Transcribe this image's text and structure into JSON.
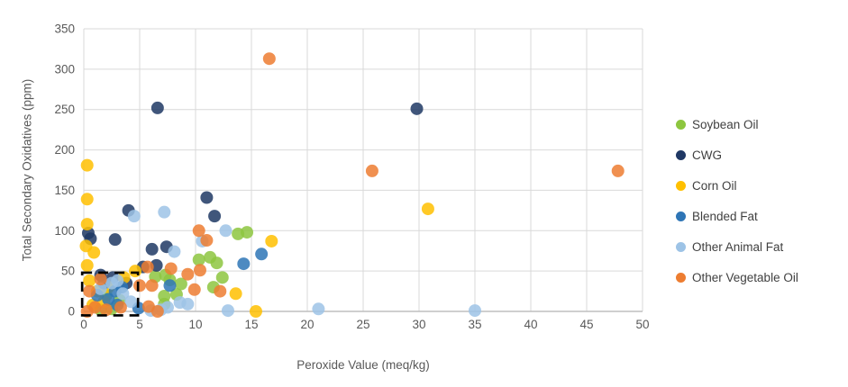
{
  "chart_data": {
    "type": "scatter",
    "title": "",
    "xlabel": "Peroxide Value (meq/kg)",
    "ylabel": "Total Secondary Oxidatives (ppm)",
    "xlim": [
      0,
      50
    ],
    "ylim": [
      0,
      350
    ],
    "xticks": [
      0,
      5,
      10,
      15,
      20,
      25,
      30,
      35,
      40,
      45,
      50
    ],
    "yticks": [
      0,
      50,
      100,
      150,
      200,
      250,
      300,
      350
    ],
    "grid": true,
    "legend_position": "right",
    "marker_radius": 7,
    "marker_opacity": 0.85,
    "series": [
      {
        "name": "Soybean Oil",
        "color": "#8DC63F",
        "points": [
          [
            1.5,
            2
          ],
          [
            2.5,
            3
          ],
          [
            2.0,
            20
          ],
          [
            3.2,
            14
          ],
          [
            7.2,
            9
          ],
          [
            7.2,
            19
          ],
          [
            8.3,
            21
          ],
          [
            8.7,
            34
          ],
          [
            6.4,
            43
          ],
          [
            7.3,
            45
          ],
          [
            7.7,
            39
          ],
          [
            11.6,
            30
          ],
          [
            12.4,
            42
          ],
          [
            10.3,
            64
          ],
          [
            11.3,
            67
          ],
          [
            11.9,
            60
          ],
          [
            13.8,
            96
          ],
          [
            14.6,
            98
          ]
        ]
      },
      {
        "name": "CWG",
        "color": "#1F3864",
        "points": [
          [
            6.6,
            252
          ],
          [
            29.8,
            251
          ],
          [
            4.0,
            125
          ],
          [
            11.0,
            141
          ],
          [
            11.7,
            118
          ],
          [
            0.4,
            97
          ],
          [
            0.6,
            90
          ],
          [
            2.8,
            89
          ],
          [
            7.4,
            80
          ],
          [
            6.1,
            77
          ],
          [
            6.5,
            57
          ],
          [
            5.3,
            55
          ],
          [
            1.5,
            45
          ],
          [
            2.6,
            42
          ],
          [
            3.8,
            35
          ]
        ]
      },
      {
        "name": "Corn Oil",
        "color": "#FFC000",
        "points": [
          [
            0.3,
            181
          ],
          [
            0.3,
            139
          ],
          [
            0.3,
            108
          ],
          [
            0.2,
            81
          ],
          [
            0.9,
            73
          ],
          [
            0.3,
            57
          ],
          [
            4.6,
            50
          ],
          [
            3.6,
            42
          ],
          [
            0.5,
            38
          ],
          [
            2.2,
            30
          ],
          [
            1.2,
            25
          ],
          [
            13.6,
            22
          ],
          [
            1.8,
            12
          ],
          [
            0.8,
            8
          ],
          [
            15.4,
            0
          ],
          [
            16.8,
            87
          ],
          [
            30.8,
            127
          ]
        ]
      },
      {
        "name": "Blended Fat",
        "color": "#2E75B6",
        "points": [
          [
            15.9,
            71
          ],
          [
            14.3,
            59
          ],
          [
            7.7,
            32
          ],
          [
            1.8,
            35
          ],
          [
            3.4,
            30
          ],
          [
            2.8,
            25
          ],
          [
            1.2,
            20
          ],
          [
            2.2,
            15
          ],
          [
            3.0,
            8
          ],
          [
            4.9,
            4
          ]
        ]
      },
      {
        "name": "Other Animal Fat",
        "color": "#9DC3E6",
        "points": [
          [
            4.5,
            118
          ],
          [
            7.2,
            123
          ],
          [
            12.7,
            100
          ],
          [
            10.6,
            87
          ],
          [
            8.1,
            74
          ],
          [
            3.0,
            38
          ],
          [
            2.5,
            35
          ],
          [
            1.5,
            28
          ],
          [
            3.5,
            22
          ],
          [
            4.2,
            12
          ],
          [
            8.6,
            11
          ],
          [
            9.3,
            9
          ],
          [
            7.5,
            5
          ],
          [
            6.0,
            1
          ],
          [
            6.9,
            2
          ],
          [
            12.9,
            1
          ],
          [
            21.0,
            3
          ],
          [
            35.0,
            1
          ]
        ]
      },
      {
        "name": "Other Vegetable Oil",
        "color": "#ED7D31",
        "points": [
          [
            16.6,
            313
          ],
          [
            25.8,
            174
          ],
          [
            47.8,
            174
          ],
          [
            10.3,
            100
          ],
          [
            11.0,
            88
          ],
          [
            5.7,
            55
          ],
          [
            7.8,
            53
          ],
          [
            10.4,
            51
          ],
          [
            9.3,
            46
          ],
          [
            1.5,
            40
          ],
          [
            5.0,
            32
          ],
          [
            6.1,
            32
          ],
          [
            9.9,
            27
          ],
          [
            12.2,
            25
          ],
          [
            0.5,
            25
          ],
          [
            5.8,
            6
          ],
          [
            1.0,
            5
          ],
          [
            3.3,
            5
          ],
          [
            2.0,
            2
          ],
          [
            0.3,
            0
          ],
          [
            6.6,
            0
          ]
        ]
      }
    ],
    "annotation": {
      "type": "dashed-rect",
      "x0": -0.15,
      "x1": 4.85,
      "y0": -5,
      "y1": 48,
      "color": "#000000"
    }
  },
  "colors": {
    "background": "#FFFFFF",
    "gridline": "#D9D9D9",
    "axis_line": "#BFBFBF",
    "tick_text": "#595959",
    "legend_text": "#404040"
  }
}
